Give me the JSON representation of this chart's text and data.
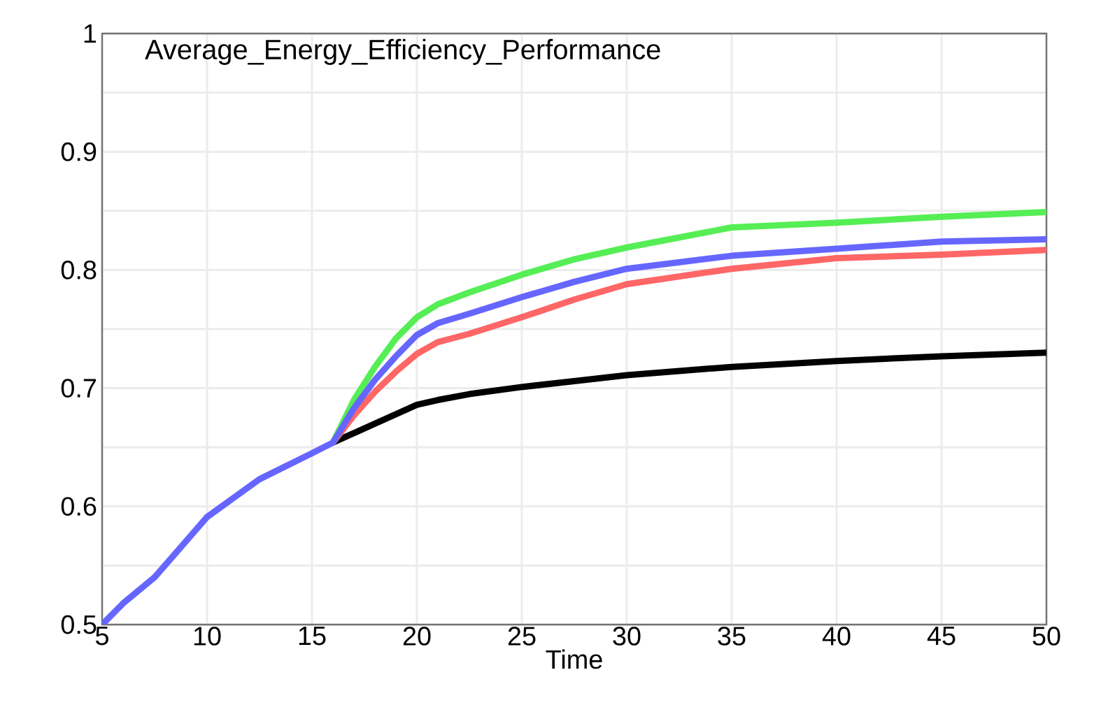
{
  "chart_data": {
    "type": "line",
    "title": "Average_Energy_Efficiency_Performance",
    "xlabel": "Time",
    "x": [
      5,
      6,
      7.5,
      10,
      12.5,
      15,
      16,
      17,
      18,
      19,
      20,
      21,
      22.5,
      25,
      27.5,
      30,
      35,
      40,
      45,
      50
    ],
    "series": [
      {
        "color": "#000000",
        "values": [
          null,
          null,
          null,
          null,
          null,
          null,
          0.654,
          0.662,
          0.67,
          0.678,
          0.686,
          0.69,
          0.695,
          0.701,
          0.706,
          0.711,
          0.718,
          0.723,
          0.727,
          0.73
        ]
      },
      {
        "color": "#ff6666",
        "values": [
          null,
          null,
          null,
          null,
          null,
          null,
          0.654,
          0.677,
          0.697,
          0.714,
          0.729,
          0.739,
          0.746,
          0.76,
          0.775,
          0.788,
          0.801,
          0.81,
          0.813,
          0.817
        ]
      },
      {
        "color": "#55ee55",
        "values": [
          null,
          null,
          null,
          null,
          null,
          null,
          0.654,
          0.69,
          0.718,
          0.742,
          0.76,
          0.771,
          0.781,
          0.796,
          0.809,
          0.819,
          0.836,
          0.84,
          0.845,
          0.849
        ]
      },
      {
        "color": "#6666ff",
        "values": [
          0.5,
          0.518,
          0.54,
          0.591,
          0.623,
          0.645,
          0.654,
          0.683,
          0.707,
          0.727,
          0.745,
          0.755,
          0.763,
          0.777,
          0.79,
          0.801,
          0.812,
          0.818,
          0.824,
          0.826
        ]
      }
    ],
    "xlim": [
      5,
      50
    ],
    "ylim": [
      0.5,
      1
    ],
    "xticks": [
      5,
      10,
      15,
      20,
      25,
      30,
      35,
      40,
      45,
      50
    ],
    "yticks": [
      0.5,
      {
        "value": 0.55,
        "label": null
      },
      0.6,
      {
        "value": 0.65,
        "label": null
      },
      0.7,
      {
        "value": 0.75,
        "label": null
      },
      0.8,
      {
        "value": 0.85,
        "label": null
      },
      0.9,
      {
        "value": 0.95,
        "label": null
      },
      1
    ],
    "grid": true,
    "marker": "none",
    "line_style": "solid"
  }
}
